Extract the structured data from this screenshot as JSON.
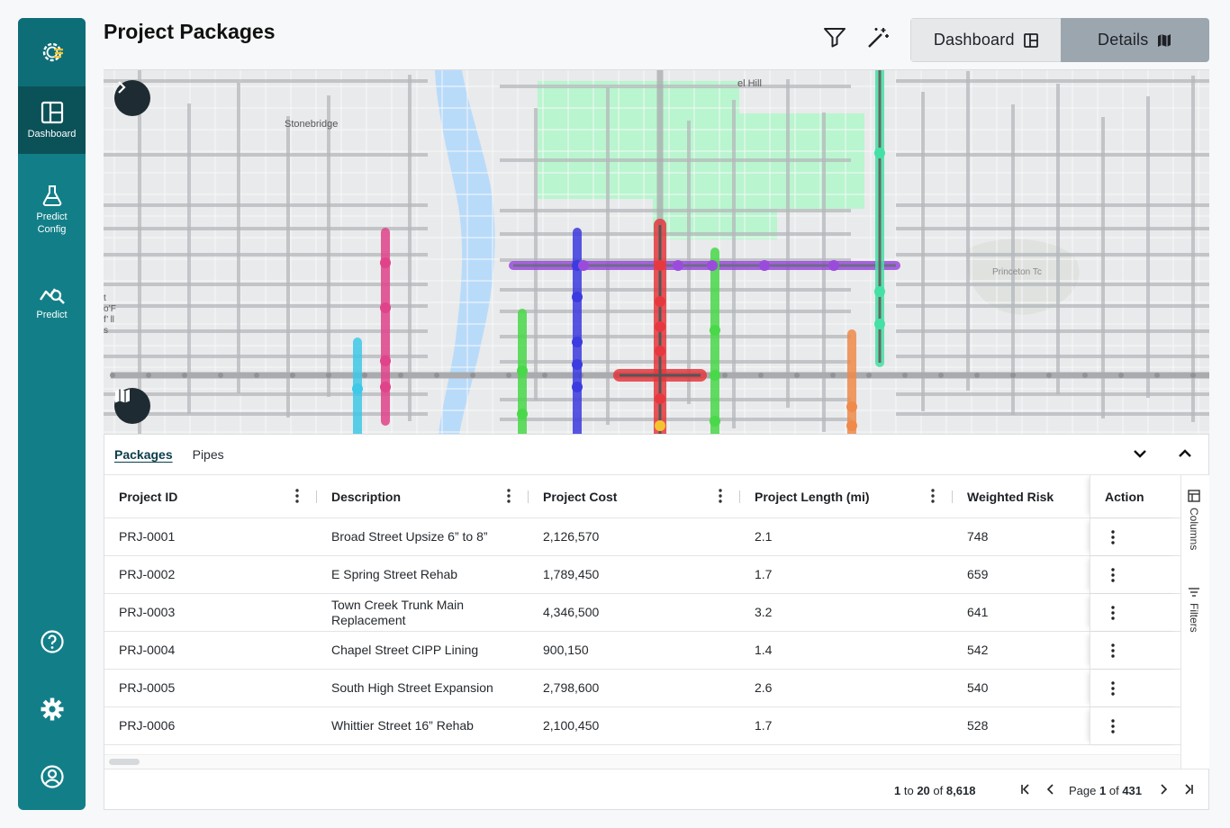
{
  "app": {
    "logo_icon": "gear-chart-logo-icon"
  },
  "sidebar": {
    "items": [
      {
        "label": "Dashboard",
        "icon": "dashboard-icon",
        "active": true
      },
      {
        "label": "Predict Config",
        "label_line1": "Predict",
        "label_line2": "Config",
        "icon": "flask-icon"
      },
      {
        "label": "Predict",
        "icon": "chart-search-icon"
      }
    ],
    "bottom": [
      "help-icon",
      "settings-icon",
      "user-icon"
    ]
  },
  "header": {
    "title": "Project Packages",
    "filter_icon": "filter-icon",
    "magic_icon": "magic-wand-icon",
    "toggle": {
      "dashboard_label": "Dashboard",
      "details_label": "Details",
      "selected": "Details"
    }
  },
  "map": {
    "labels": {
      "north": "el Hill",
      "stonebridge": "Stonebridge",
      "princeton": "Princeton Tc",
      "west": "to’Ff’ lls"
    }
  },
  "tabs": {
    "packages": "Packages",
    "pipes": "Pipes",
    "active": "Packages"
  },
  "table": {
    "columns": [
      "Project ID",
      "Description",
      "Project Cost",
      "Project Length (mi)",
      "Weighted Risk",
      "Action"
    ],
    "rows": [
      {
        "id": "PRJ-0001",
        "description": "Broad Street Upsize 6” to 8”",
        "cost": "2,126,570",
        "length": "2.1",
        "risk": "748"
      },
      {
        "id": "PRJ-0002",
        "description": "E Spring Street Rehab",
        "cost": "1,789,450",
        "length": "1.7",
        "risk": "659"
      },
      {
        "id": "PRJ-0003",
        "description_line1": "Town Creek Trunk Main",
        "description_line2": "Replacement",
        "cost": "4,346,500",
        "length": "3.2",
        "risk": "641"
      },
      {
        "id": "PRJ-0004",
        "description": "Chapel Street CIPP Lining",
        "cost": "900,150",
        "length": "1.4",
        "risk": "542"
      },
      {
        "id": "PRJ-0005",
        "description": "South High Street Expansion",
        "cost": "2,798,600",
        "length": "2.6",
        "risk": "540"
      },
      {
        "id": "PRJ-0006",
        "description": "Whittier Street 16” Rehab",
        "cost": "2,100,450",
        "length": "1.7",
        "risk": "528"
      }
    ]
  },
  "side_tools": {
    "columns": "Columns",
    "filters": "Filters"
  },
  "pager": {
    "from": "1",
    "to_word": "to",
    "to": "20",
    "of_word": "of",
    "total": "8,618",
    "page_word": "Page",
    "page": "1",
    "page_of": "of",
    "pages": "431"
  },
  "colors": {
    "sidebar": "#127f88",
    "sidebar_active": "#0b5158",
    "map_bg": "#e9eaeb",
    "park": "#b9f5cf",
    "river": "#b9dbfa",
    "pipe_purple": "#9b4bdc",
    "pipe_blue": "#3b3be0",
    "pipe_red": "#e5393f",
    "pipe_green": "#49d84a",
    "pipe_pink": "#e0438a",
    "pipe_cyan": "#3fc8e8",
    "pipe_orange": "#f08a4b",
    "pipe_teal": "#45e0a5"
  }
}
